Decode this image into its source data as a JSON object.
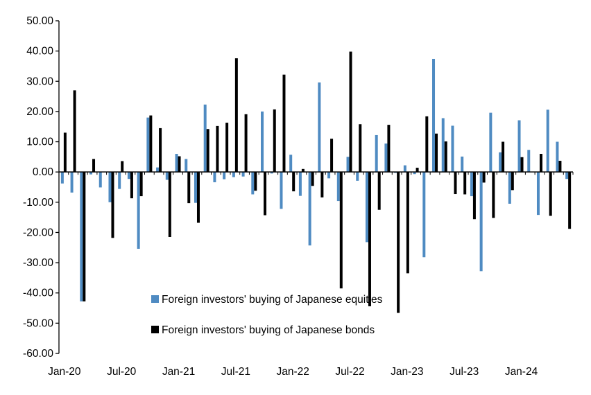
{
  "chart_data": {
    "type": "bar",
    "title": "",
    "xlabel": "",
    "ylabel": "",
    "ylim": [
      -60,
      50
    ],
    "y_ticks": [
      "50.00",
      "40.00",
      "30.00",
      "20.00",
      "10.00",
      "0.00",
      "-10.00",
      "-20.00",
      "-30.00",
      "-40.00",
      "-50.00",
      "-60.00"
    ],
    "x_tick_labels": [
      "Jan-20",
      "Jul-20",
      "Jan-21",
      "Jul-21",
      "Jan-22",
      "Jul-22",
      "Jan-23",
      "Jul-23",
      "Jan-24"
    ],
    "grid": false,
    "legend_position": "bottom-center inside plot",
    "categories": [
      "Jan-20",
      "Feb-20",
      "Mar-20",
      "Apr-20",
      "May-20",
      "Jun-20",
      "Jul-20",
      "Aug-20",
      "Sep-20",
      "Oct-20",
      "Nov-20",
      "Dec-20",
      "Jan-21",
      "Feb-21",
      "Mar-21",
      "Apr-21",
      "May-21",
      "Jun-21",
      "Jul-21",
      "Aug-21",
      "Sep-21",
      "Oct-21",
      "Nov-21",
      "Dec-21",
      "Jan-22",
      "Feb-22",
      "Mar-22",
      "Apr-22",
      "May-22",
      "Jun-22",
      "Jul-22",
      "Aug-22",
      "Sep-22",
      "Oct-22",
      "Nov-22",
      "Dec-22",
      "Jan-23",
      "Feb-23",
      "Mar-23",
      "Apr-23",
      "May-23",
      "Jun-23",
      "Jul-23",
      "Aug-23",
      "Sep-23",
      "Oct-23",
      "Nov-23",
      "Dec-23",
      "Jan-24",
      "Feb-24",
      "Mar-24",
      "Apr-24",
      "May-24",
      "Jun-24"
    ],
    "series": [
      {
        "name": "Foreign investors' buying of Japanese equities",
        "color": "#4F8BC2",
        "values": [
          -3.8,
          -6.8,
          -42.8,
          -0.8,
          -5.1,
          -10.0,
          -5.6,
          -2.3,
          -25.4,
          18.0,
          1.5,
          -2.6,
          6.0,
          4.3,
          -10.2,
          22.3,
          -3.4,
          -2.4,
          -1.7,
          -1.5,
          -7.4,
          20.0,
          -0.5,
          -12.2,
          5.7,
          -7.9,
          -24.3,
          29.6,
          -2.1,
          -9.6,
          5.0,
          -2.9,
          -23.2,
          12.2,
          9.4,
          -0.3,
          2.2,
          -0.7,
          -28.2,
          37.4,
          17.8,
          15.3,
          5.1,
          -8.0,
          -32.8,
          19.6,
          6.5,
          -10.5,
          17.1,
          7.3,
          -14.2,
          20.6,
          10.0,
          -2.3
        ]
      },
      {
        "name": "Foreign investors' buying of Japanese bonds",
        "color": "#000000",
        "values": [
          13.0,
          27.0,
          -42.8,
          4.3,
          0.0,
          -21.8,
          3.6,
          -8.7,
          -8.0,
          18.7,
          14.5,
          -21.5,
          5.2,
          -10.3,
          -16.8,
          14.2,
          15.2,
          16.3,
          37.6,
          19.1,
          -6.2,
          -14.3,
          20.7,
          32.2,
          -6.4,
          1.0,
          -4.6,
          -8.4,
          11.0,
          -38.5,
          39.8,
          15.8,
          -44.4,
          -12.5,
          15.6,
          -46.6,
          -33.5,
          1.4,
          18.4,
          12.7,
          10.1,
          -7.3,
          -7.4,
          -15.6,
          -3.5,
          -15.2,
          10.0,
          -6.0,
          4.9,
          0.0,
          6.0,
          -14.5,
          3.7,
          -18.8
        ]
      }
    ]
  }
}
